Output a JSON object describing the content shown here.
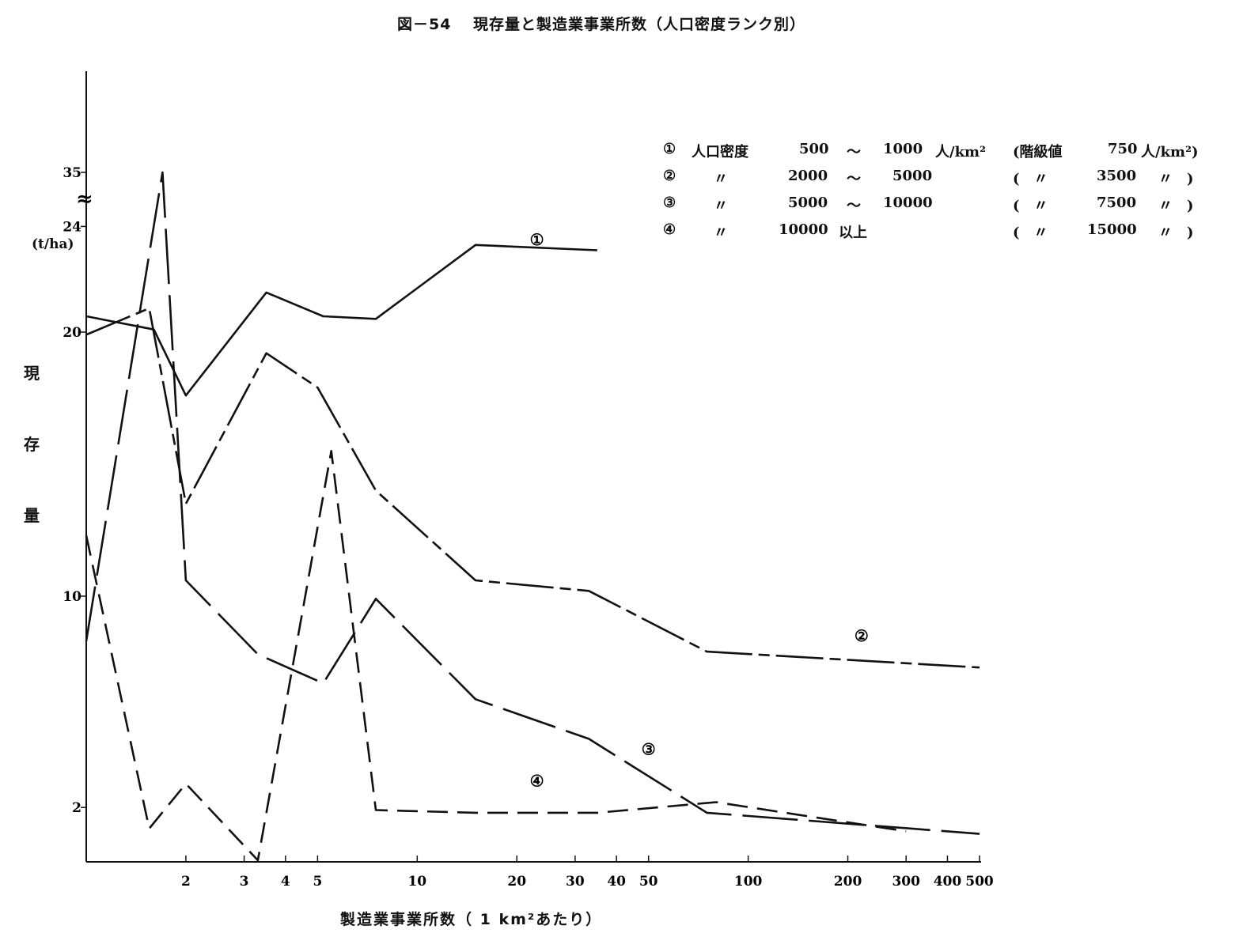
{
  "title": "図－54　 現存量と製造業事業所数（人口密度ランク別）",
  "y_axis": {
    "label_chars": [
      "現",
      "存",
      "量"
    ],
    "unit": "(t/ha)",
    "tick_labels": [
      "2",
      "10",
      "20",
      "24",
      "35"
    ],
    "break_mark": "≈"
  },
  "x_axis": {
    "label": "製造業事業所数（ 1 km²あたり）",
    "tick_labels": [
      "2",
      "3",
      "4",
      "5",
      "10",
      "20",
      "30",
      "40",
      "50",
      "100",
      "200",
      "300",
      "400",
      "500"
    ]
  },
  "legend": [
    {
      "marker": "①",
      "name": "人口密度",
      "low": "500",
      "sep": "～",
      "high": "1000",
      "unit": "人/km²",
      "class_label": "(階級値",
      "class_value": "750",
      "class_unit": "人/km²)"
    },
    {
      "marker": "②",
      "name": "〃",
      "low": "2000",
      "sep": "～",
      "high": "5000",
      "unit": "",
      "class_label": "(　〃",
      "class_value": "3500",
      "class_unit": "〃　)"
    },
    {
      "marker": "③",
      "name": "〃",
      "low": "5000",
      "sep": "～",
      "high": "10000",
      "unit": "",
      "class_label": "(　〃",
      "class_value": "7500",
      "class_unit": "〃　)"
    },
    {
      "marker": "④",
      "name": "〃",
      "low": "10000",
      "sep": "以上",
      "high": "",
      "unit": "",
      "class_label": "(　〃",
      "class_value": "15000",
      "class_unit": "〃　)"
    }
  ],
  "chart_data": {
    "type": "line",
    "x_scale": "log",
    "xlim": [
      1,
      500
    ],
    "y_scale": "broken linear (0–24, break, 35)",
    "ylim": [
      0,
      36
    ],
    "series": [
      {
        "name": "①",
        "x": [
          1.0,
          1.6,
          2.0,
          3.5,
          5.2,
          7.5,
          15,
          35
        ],
        "y": [
          20.6,
          20.1,
          17.6,
          21.5,
          20.6,
          20.5,
          23.3,
          23.1
        ]
      },
      {
        "name": "②",
        "x": [
          1.0,
          1.55,
          2.0,
          3.5,
          5.0,
          7.5,
          15,
          33,
          75,
          500
        ],
        "y": [
          19.9,
          20.9,
          13.5,
          19.2,
          17.9,
          14.0,
          10.6,
          10.2,
          7.9,
          7.3
        ]
      },
      {
        "name": "③",
        "x": [
          1.0,
          1.7,
          2.0,
          3.3,
          5.2,
          7.5,
          15,
          33,
          75,
          500
        ],
        "y": [
          8.3,
          35.0,
          10.6,
          7.8,
          6.7,
          9.9,
          6.1,
          4.6,
          1.8,
          1.0
        ]
      },
      {
        "name": "④",
        "x": [
          1.0,
          1.55,
          2.0,
          3.3,
          5.5,
          7.5,
          15,
          35,
          80,
          300
        ],
        "y": [
          12.3,
          1.2,
          2.9,
          0.0,
          15.5,
          1.9,
          1.8,
          1.8,
          2.2,
          1.1
        ]
      }
    ],
    "label_positions_x": [
      23,
      220,
      50,
      23
    ],
    "label_positions_y": [
      23.3,
      8.3,
      4.0,
      2.8
    ]
  }
}
